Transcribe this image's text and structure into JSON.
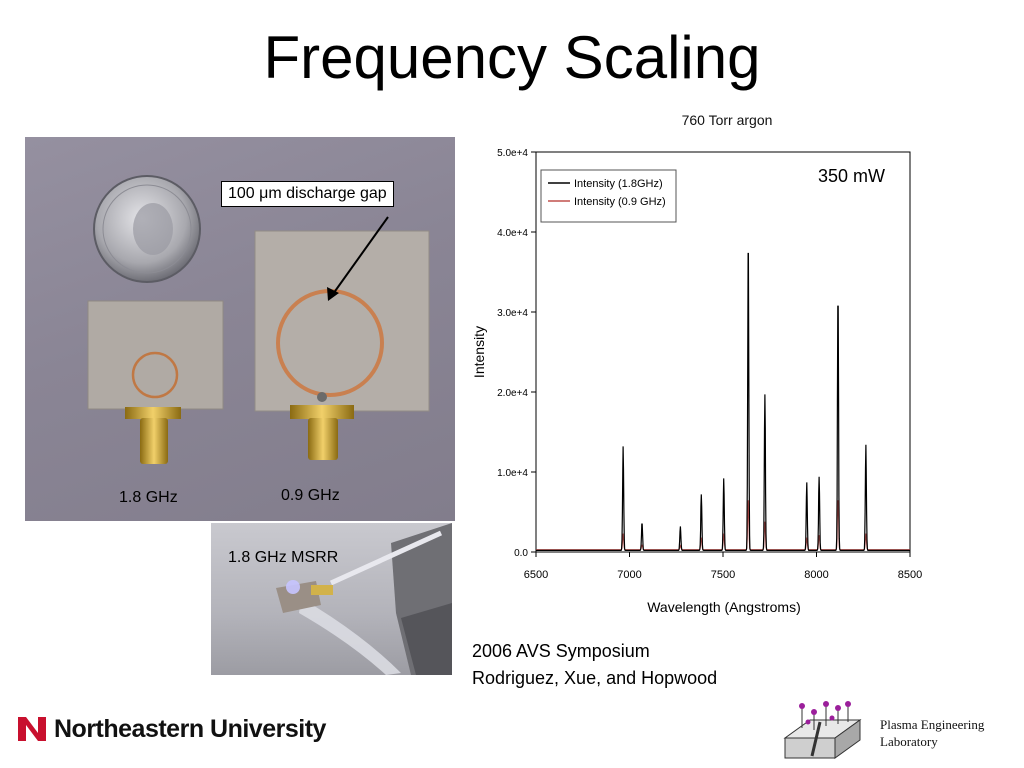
{
  "slide": {
    "title": "Frequency Scaling",
    "citation_line1": "2006 AVS Symposium",
    "citation_line2": "Rodriguez, Xue, and Hopwood"
  },
  "photo_main": {
    "callout": "100 μm discharge gap",
    "label_left": "1.8 GHz",
    "label_right": "0.9 GHz"
  },
  "photo_small": {
    "label": "1.8 GHz MSRR"
  },
  "chart_data": {
    "type": "line",
    "title": "760 Torr argon",
    "annotation": "350 mW",
    "xlabel": "Wavelength (Angstroms)",
    "ylabel": "Intensity",
    "xlim": [
      6500,
      8500
    ],
    "ylim": [
      0,
      50000
    ],
    "x_ticks": [
      "6500",
      "7000",
      "7500",
      "8000",
      "8500"
    ],
    "y_ticks": [
      "0.0",
      "1.0e+4",
      "2.0e+4",
      "3.0e+4",
      "4.0e+4",
      "5.0e+4"
    ],
    "legend_position": "top-left",
    "series": [
      {
        "name": "Intensity (1.8GHz)",
        "color": "#000000",
        "baseline": 200,
        "peaks": [
          {
            "x": 6966,
            "y": 13000
          },
          {
            "x": 7067,
            "y": 3500
          },
          {
            "x": 7272,
            "y": 3000
          },
          {
            "x": 7384,
            "y": 7000
          },
          {
            "x": 7504,
            "y": 9000
          },
          {
            "x": 7635,
            "y": 39500
          },
          {
            "x": 7724,
            "y": 19500
          },
          {
            "x": 7948,
            "y": 8500
          },
          {
            "x": 8014,
            "y": 9200
          },
          {
            "x": 8115,
            "y": 32500
          },
          {
            "x": 8264,
            "y": 13200
          }
        ]
      },
      {
        "name": "Intensity (0.9 GHz)",
        "color": "#c0504d",
        "baseline": 300,
        "peaks": [
          {
            "x": 6966,
            "y": 2000
          },
          {
            "x": 7067,
            "y": 600
          },
          {
            "x": 7272,
            "y": 500
          },
          {
            "x": 7384,
            "y": 1500
          },
          {
            "x": 7504,
            "y": 2000
          },
          {
            "x": 7635,
            "y": 6500
          },
          {
            "x": 7724,
            "y": 3500
          },
          {
            "x": 7948,
            "y": 1500
          },
          {
            "x": 8014,
            "y": 1800
          },
          {
            "x": 8115,
            "y": 6500
          },
          {
            "x": 8264,
            "y": 2000
          }
        ]
      }
    ]
  },
  "footer": {
    "university": "Northeastern University",
    "lab_line1": "Plasma Engineering",
    "lab_line2": "Laboratory",
    "colors": {
      "nu_red": "#c8102e",
      "lab_purple": "#9b1f9b"
    }
  }
}
